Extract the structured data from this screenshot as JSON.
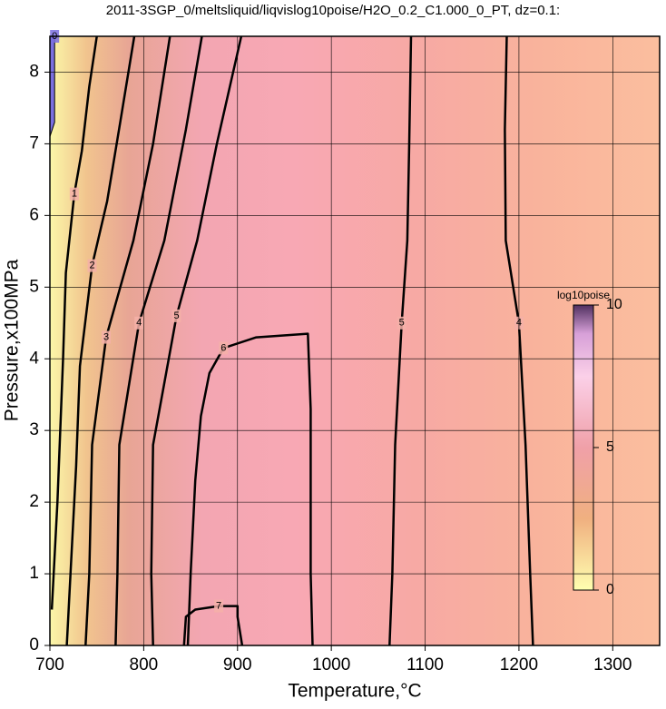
{
  "chart_data": {
    "type": "contour",
    "title": "2011-3SGP_0/meltsliquid/liqvislog10poise/H2O_0.2_C1.000_0_PT, dz=0.1:",
    "x_label": "Temperature,°C",
    "y_label": "Pressure,x100MPa",
    "xlim": [
      700,
      1350
    ],
    "ylim": [
      0,
      8.5
    ],
    "xticks": [
      700,
      800,
      900,
      1000,
      1100,
      1200,
      1300
    ],
    "yticks": [
      0,
      1,
      2,
      3,
      4,
      5,
      6,
      7,
      8
    ],
    "grid": true,
    "line_color": "#000000",
    "colorbar": {
      "label": "log10poise",
      "lim": [
        0,
        10
      ],
      "ticks": [
        0,
        5,
        10
      ]
    },
    "contours": [
      {
        "level": 0,
        "fill": "#7b6fe0",
        "x": [
          700,
          700,
          705,
          705
        ],
        "y": [
          7.1,
          8.5,
          8.5,
          7.3
        ]
      },
      {
        "level": 1,
        "x": [
          702,
          708,
          714,
          717,
          726,
          734,
          742,
          750
        ],
        "y": [
          0.5,
          2,
          4,
          5.2,
          6.3,
          6.9,
          7.8,
          8.5
        ]
      },
      {
        "level": 2,
        "x": [
          718,
          722,
          728,
          732,
          745,
          761,
          775,
          790
        ],
        "y": [
          0,
          1,
          2.5,
          3.9,
          5.3,
          6.2,
          7.3,
          8.5
        ]
      },
      {
        "level": 3,
        "x": [
          738,
          742,
          745,
          760,
          789,
          810,
          828
        ],
        "y": [
          0,
          1,
          2.8,
          4.3,
          5.65,
          7,
          8.5
        ]
      },
      {
        "level": 4,
        "x": [
          770,
          772,
          774,
          795,
          822,
          845,
          862
        ],
        "y": [
          0,
          1,
          2.8,
          4.5,
          5.65,
          7.2,
          8.5
        ]
      },
      {
        "level": 5,
        "x": [
          810,
          808,
          810,
          835,
          857,
          878,
          904
        ],
        "y": [
          0,
          1,
          2.8,
          4.6,
          5.65,
          7,
          8.5
        ]
      },
      {
        "level": 6,
        "x": [
          847,
          850,
          855,
          861,
          870,
          885,
          920,
          975,
          978,
          978,
          980
        ],
        "y": [
          0,
          1,
          2.3,
          3.2,
          3.8,
          4.15,
          4.3,
          4.35,
          3.3,
          1,
          0
        ]
      },
      {
        "level": 7,
        "x": [
          843,
          845,
          855,
          880,
          900,
          900,
          905
        ],
        "y": [
          0,
          0.4,
          0.5,
          0.55,
          0.55,
          0.4,
          0
        ]
      },
      {
        "level": 5,
        "x": [
          1062,
          1065,
          1068,
          1075,
          1081,
          1083,
          1085
        ],
        "y": [
          0,
          1,
          2.8,
          4.5,
          5.65,
          7,
          8.5
        ]
      },
      {
        "level": 4,
        "x": [
          1215,
          1212,
          1207,
          1200,
          1186,
          1185,
          1187
        ],
        "y": [
          0,
          1,
          2.8,
          4.5,
          5.65,
          7.2,
          8.5
        ]
      }
    ]
  }
}
